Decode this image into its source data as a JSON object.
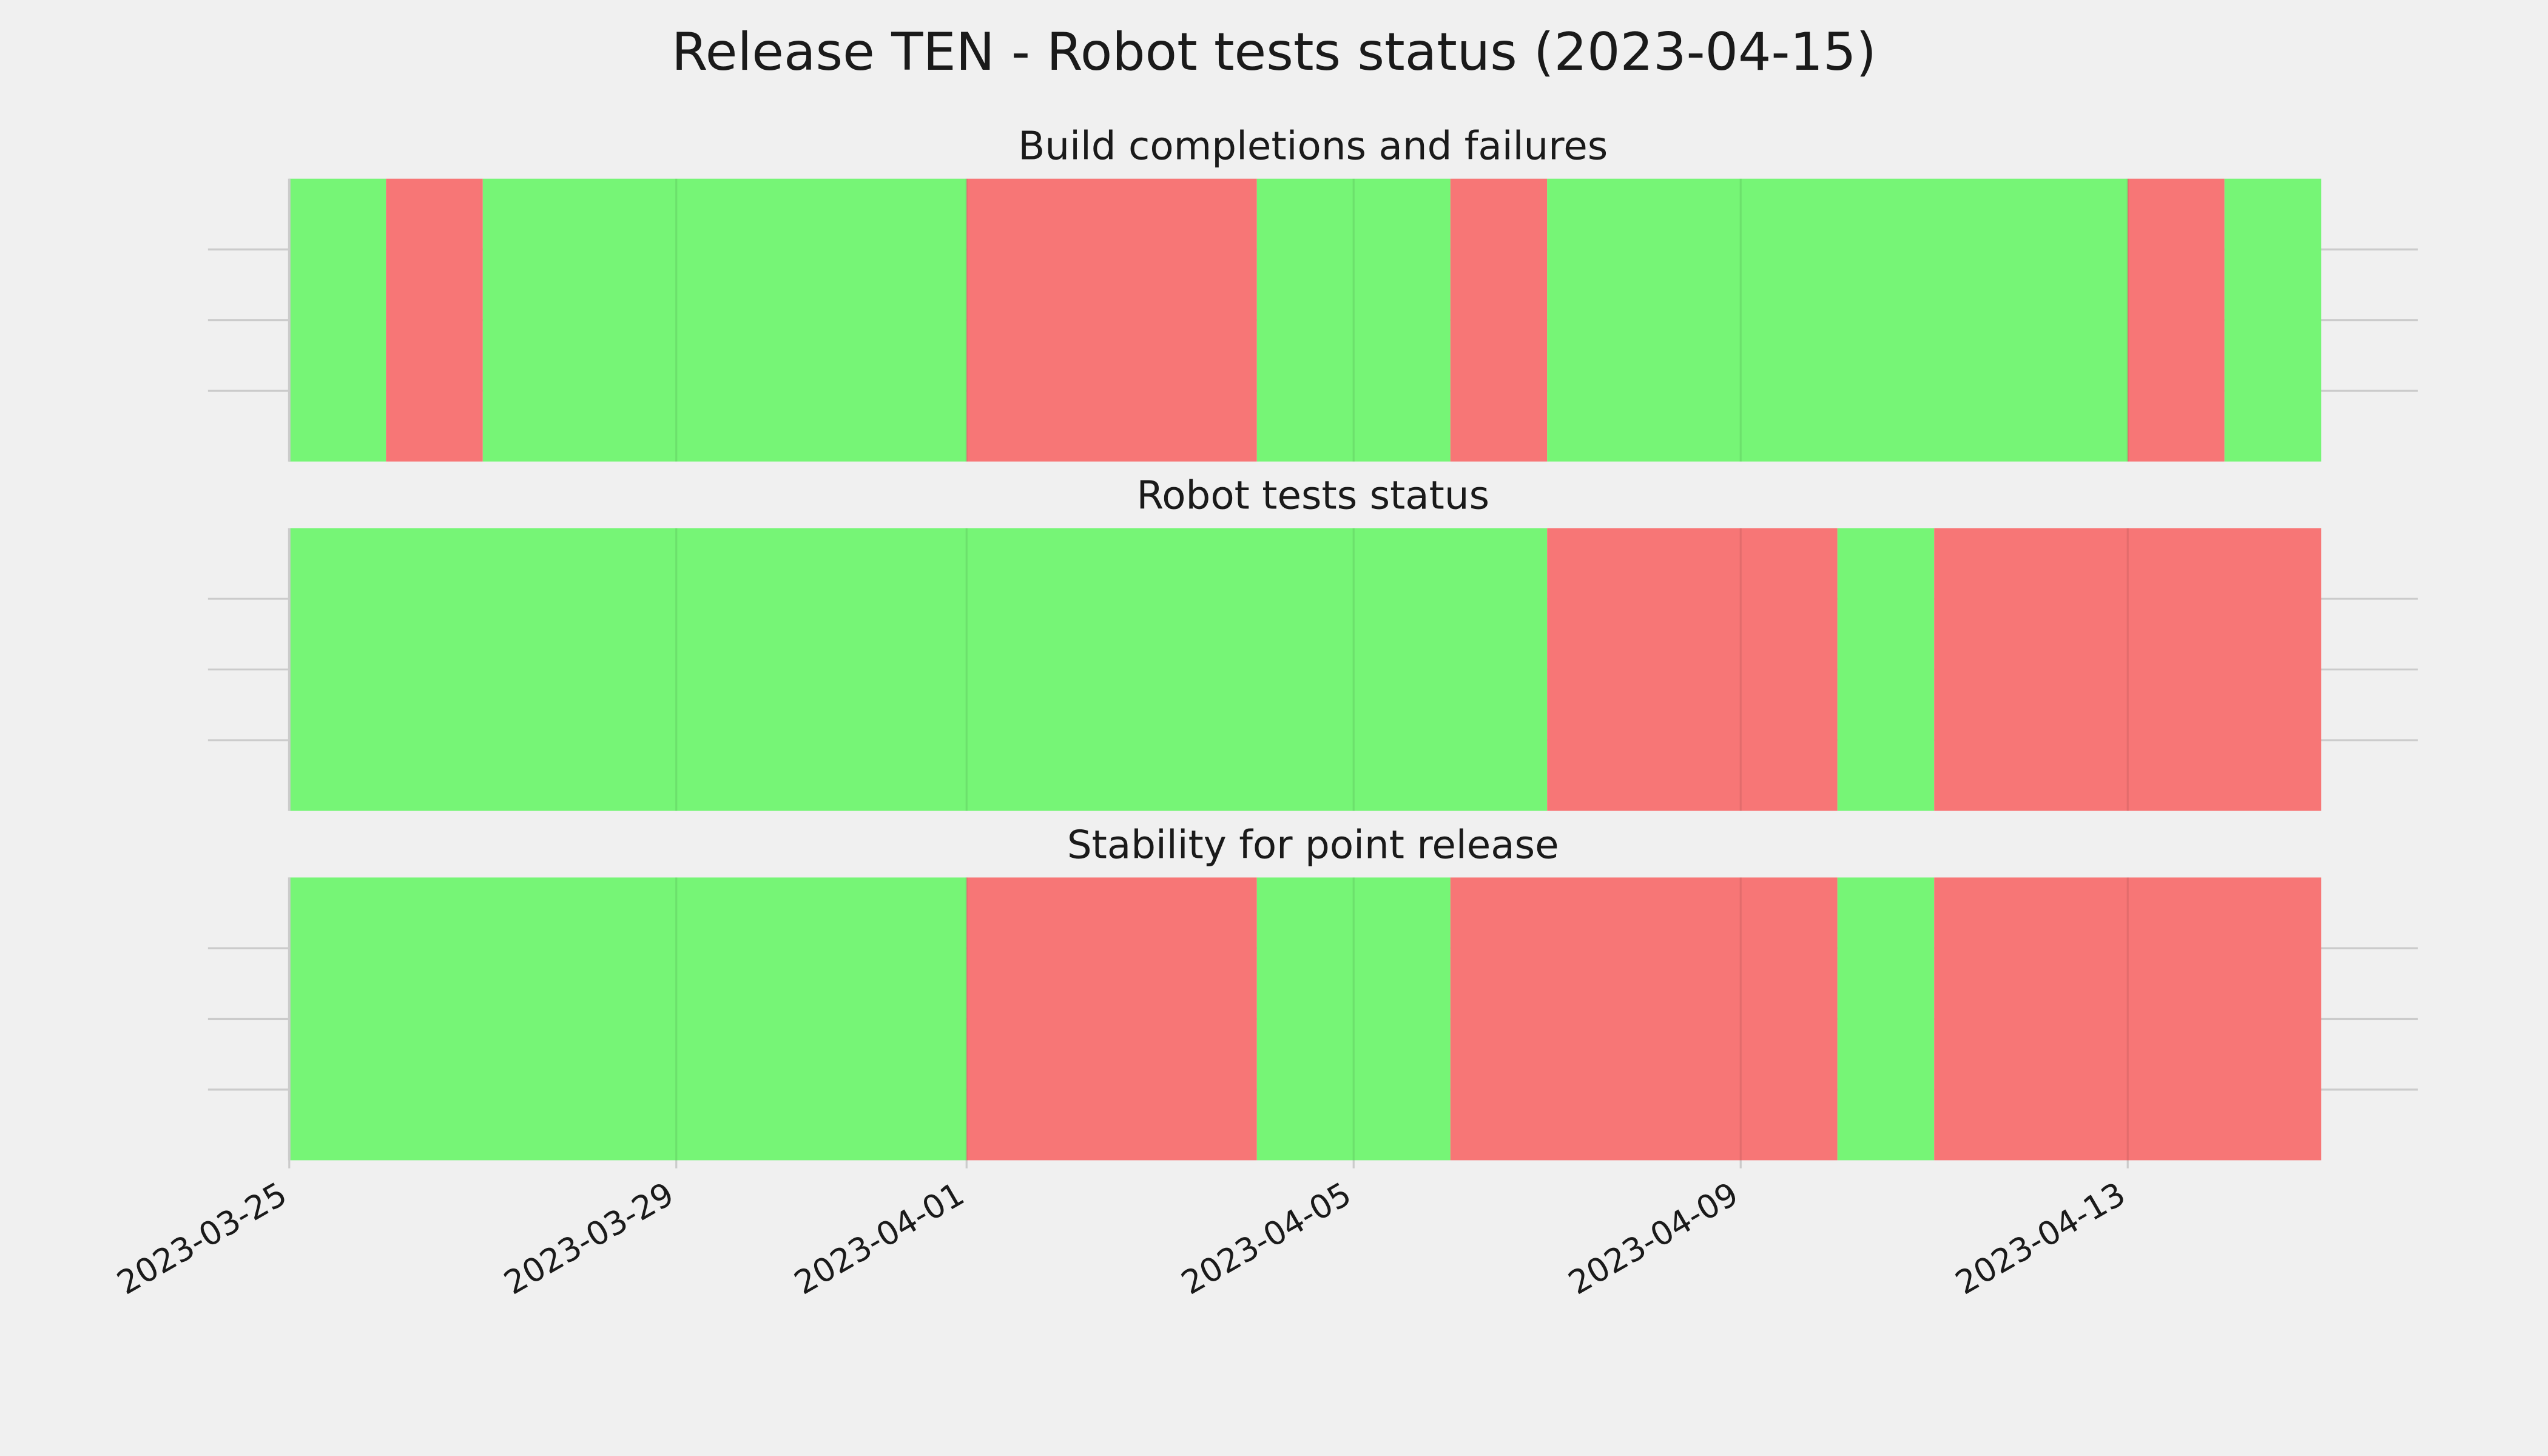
{
  "title": "Release TEN - Robot tests status (2023-04-15)",
  "chart_data": [
    {
      "type": "status",
      "title": "Build completions and failures",
      "x": [
        "2023-03-25",
        "2023-03-26",
        "2023-03-27",
        "2023-04-01",
        "2023-04-04",
        "2023-04-06",
        "2023-04-07",
        "2023-04-13",
        "2023-04-14",
        "2023-04-15"
      ],
      "colors": [
        "#76f576",
        "#f77676",
        "#76f576",
        "#f77676",
        "#76f576",
        "#f77676",
        "#76f576",
        "#f77676",
        "#76f576"
      ],
      "grid": true
    },
    {
      "type": "status",
      "title": "Robot tests status",
      "x": [
        "2023-03-25",
        "2023-04-07",
        "2023-04-10",
        "2023-04-11",
        "2023-04-15"
      ],
      "colors": [
        "#76f576",
        "#f77676",
        "#76f576",
        "#f77676"
      ],
      "grid": true
    },
    {
      "type": "status",
      "title": "Stability for point release",
      "x": [
        "2023-03-25",
        "2023-04-01",
        "2023-04-04",
        "2023-04-06",
        "2023-04-10",
        "2023-04-11",
        "2023-04-15"
      ],
      "colors": [
        "#76f576",
        "#f77676",
        "#76f576",
        "#f77676",
        "#76f576",
        "#f77676"
      ],
      "grid": true,
      "xlim": [
        "2023-03-25",
        "2023-04-16"
      ],
      "xticks": [
        "2023-03-25",
        "2023-03-29",
        "2023-04-01",
        "2023-04-05",
        "2023-04-09",
        "2023-04-13"
      ]
    }
  ]
}
